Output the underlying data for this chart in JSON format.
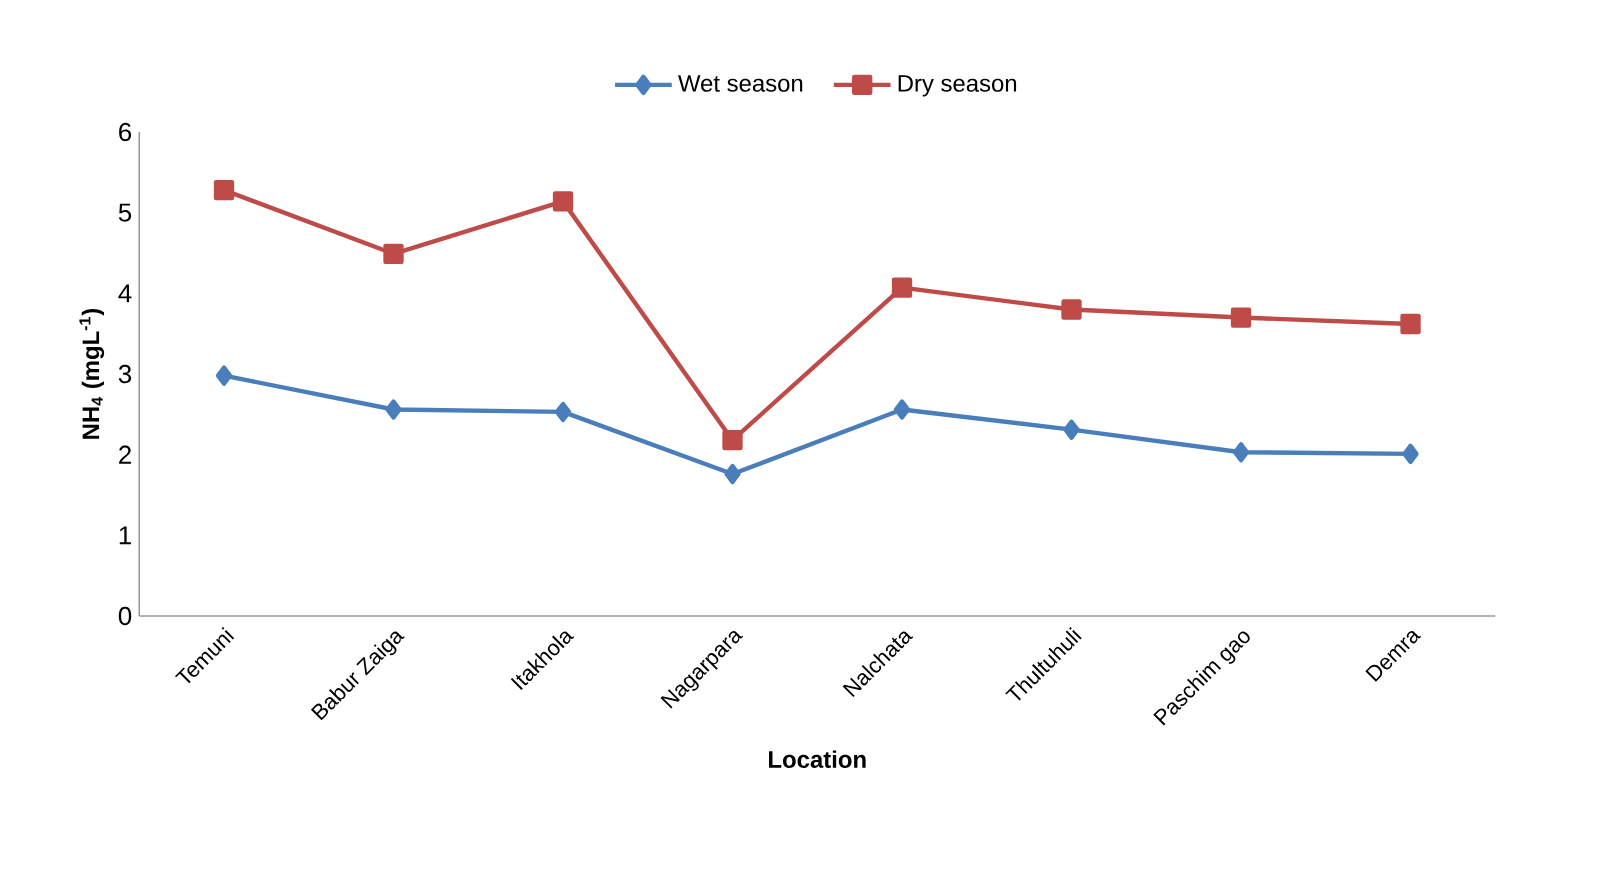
{
  "chart_data": {
    "type": "line",
    "xlabel": "Location",
    "ylabel": "NH$_{4}$ (mgL$^{-1}$)",
    "categories": [
      "Temuni",
      "Babur Zaiga",
      "Itakhola",
      "Nagarpara",
      "Nalchata",
      "Thultuhuli",
      "Paschim gao",
      "Demra"
    ],
    "series": [
      {
        "name": "Wet season",
        "color": "#4a7ebb",
        "marker": "diamond",
        "values": [
          2.98,
          2.56,
          2.53,
          1.76,
          2.56,
          2.31,
          2.03,
          2.01
        ]
      },
      {
        "name": "Dry season",
        "color": "#be4b48",
        "marker": "square",
        "values": [
          5.28,
          4.49,
          5.14,
          2.18,
          4.07,
          3.8,
          3.7,
          3.62
        ]
      }
    ],
    "ylim": [
      0,
      6
    ],
    "yticks": [
      0,
      1,
      2,
      3,
      4,
      5,
      6
    ],
    "grid": false,
    "legend": "top"
  }
}
